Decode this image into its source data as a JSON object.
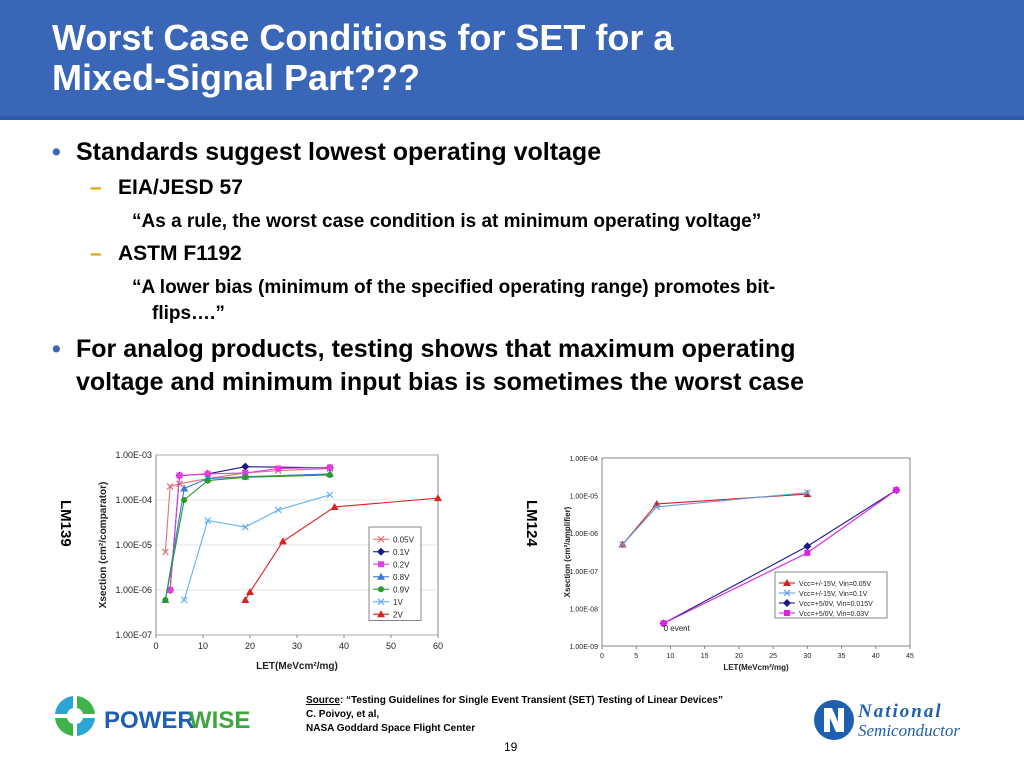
{
  "title": {
    "line1": "Worst Case Conditions for SET for a",
    "line2": "Mixed-Signal Part???"
  },
  "bullets": {
    "b1": "Standards suggest lowest operating voltage",
    "b1_sub1": "EIA/JESD 57",
    "b1_sub1_quote": "“As a rule, the worst case condition is at minimum operating voltage”",
    "b1_sub2": "ASTM F1192",
    "b1_sub2_quote_a": "“A lower bias (minimum of the specified operating range) promotes bit-",
    "b1_sub2_quote_b": "flips….”",
    "b2_line1": "For analog products, testing shows that maximum operating",
    "b2_line2": "voltage and minimum input bias is sometimes the worst case"
  },
  "chart_labels": {
    "left": "LM139",
    "right": "LM124"
  },
  "source": {
    "label": "Source",
    "line1": ":  “Testing Guidelines for Single Event Transient (SET) Testing of Linear Devices”",
    "line2": " C. Poivoy, et al,",
    "line3": "NASA Goddard Space Flight Center"
  },
  "page_number": "19",
  "logos": {
    "left_a": "POWER",
    "left_b": "WISE",
    "right_a": "National",
    "right_b": "Semiconductor"
  },
  "colors": {
    "header": "#3a66b8",
    "bullet": "#3a66b8",
    "dash": "#e8a000"
  },
  "chart_data": [
    {
      "type": "line",
      "xlabel": "LET(MeVcm²/mg)",
      "ylabel": "Xsection (cm²/comparator)",
      "ylog": true,
      "xlim": [
        0,
        60
      ],
      "ylim_exp": [
        -7,
        -3
      ],
      "xticks": [
        "0",
        "10",
        "20",
        "30",
        "40",
        "50",
        "60"
      ],
      "yticks": [
        "1.00E-07",
        "1.00E-06",
        "1.00E-05",
        "1.00E-04",
        "1.00E-03"
      ],
      "legend_position": "right",
      "series": [
        {
          "name": "0.05V",
          "color": "#e07070",
          "marker": "x",
          "x": [
            2,
            3,
            5,
            11,
            19,
            26,
            37
          ],
          "y": [
            7e-06,
            0.0002,
            0.00023,
            0.0003,
            0.0004,
            0.00045,
            0.0005
          ]
        },
        {
          "name": "0.1V",
          "color": "#1a1a8c",
          "marker": "d",
          "x": [
            3,
            5,
            11,
            19,
            37
          ],
          "y": [
            1e-06,
            0.00035,
            0.00038,
            0.00055,
            0.00052
          ]
        },
        {
          "name": "0.2V",
          "color": "#e040e0",
          "marker": "s",
          "x": [
            3,
            5,
            11,
            19,
            26,
            37
          ],
          "y": [
            1e-06,
            0.00035,
            0.00038,
            0.0004,
            0.0005,
            0.00053
          ]
        },
        {
          "name": "0.8V",
          "color": "#3a7ad0",
          "marker": "t",
          "x": [
            2,
            6,
            11,
            19,
            37
          ],
          "y": [
            6e-07,
            0.00018,
            0.0003,
            0.00033,
            0.00038
          ]
        },
        {
          "name": "0.9V",
          "color": "#2a9a2a",
          "marker": "c",
          "x": [
            2,
            6,
            11,
            19,
            37
          ],
          "y": [
            6e-07,
            0.0001,
            0.00027,
            0.00032,
            0.00036
          ]
        },
        {
          "name": "1V",
          "color": "#60b0f0",
          "marker": "x",
          "x": [
            6,
            11,
            19,
            26,
            37
          ],
          "y": [
            6e-07,
            3.5e-05,
            2.5e-05,
            6e-05,
            0.00013
          ]
        },
        {
          "name": "2V",
          "color": "#e02020",
          "marker": "t",
          "x": [
            19,
            20,
            27,
            38,
            60
          ],
          "y": [
            6e-07,
            9e-07,
            1.2e-05,
            7e-05,
            0.00011
          ]
        }
      ]
    },
    {
      "type": "line",
      "xlabel": "LET(MeVcm²/mg)",
      "ylabel": "Xsection (cm²/amplifier)",
      "ylog": true,
      "xlim": [
        0,
        45
      ],
      "ylim_exp": [
        -9,
        -4
      ],
      "xticks": [
        "0",
        "5",
        "10",
        "15",
        "20",
        "25",
        "30",
        "35",
        "40",
        "45"
      ],
      "yticks": [
        "1.00E-09",
        "1.00E-08",
        "1.00E-07",
        "1.00E-06",
        "1.00E-05",
        "1.00E-04"
      ],
      "legend_position": "bottom-right",
      "annotations": [
        "0 event"
      ],
      "series": [
        {
          "name": "Vcc=+/-15V, Vin=0.05V",
          "color": "#d02020",
          "marker": "t",
          "x": [
            3,
            8,
            30
          ],
          "y": [
            5e-07,
            6e-06,
            1.1e-05
          ]
        },
        {
          "name": "Vcc=+/-15V, Vin=0.1V",
          "color": "#60a0e0",
          "marker": "x",
          "x": [
            3,
            8,
            30
          ],
          "y": [
            5e-07,
            5e-06,
            1.2e-05
          ]
        },
        {
          "name": "Vcc=+5/0V, Vin=0.015V",
          "color": "#1a1a8c",
          "marker": "d",
          "x": [
            9,
            30,
            43
          ],
          "y": [
            4e-09,
            4.5e-07,
            1.4e-05
          ]
        },
        {
          "name": "Vcc=+5/0V, Vin=0.03V",
          "color": "#e020e0",
          "marker": "s",
          "x": [
            9,
            30,
            43
          ],
          "y": [
            4e-09,
            3e-07,
            1.4e-05
          ]
        }
      ]
    }
  ]
}
